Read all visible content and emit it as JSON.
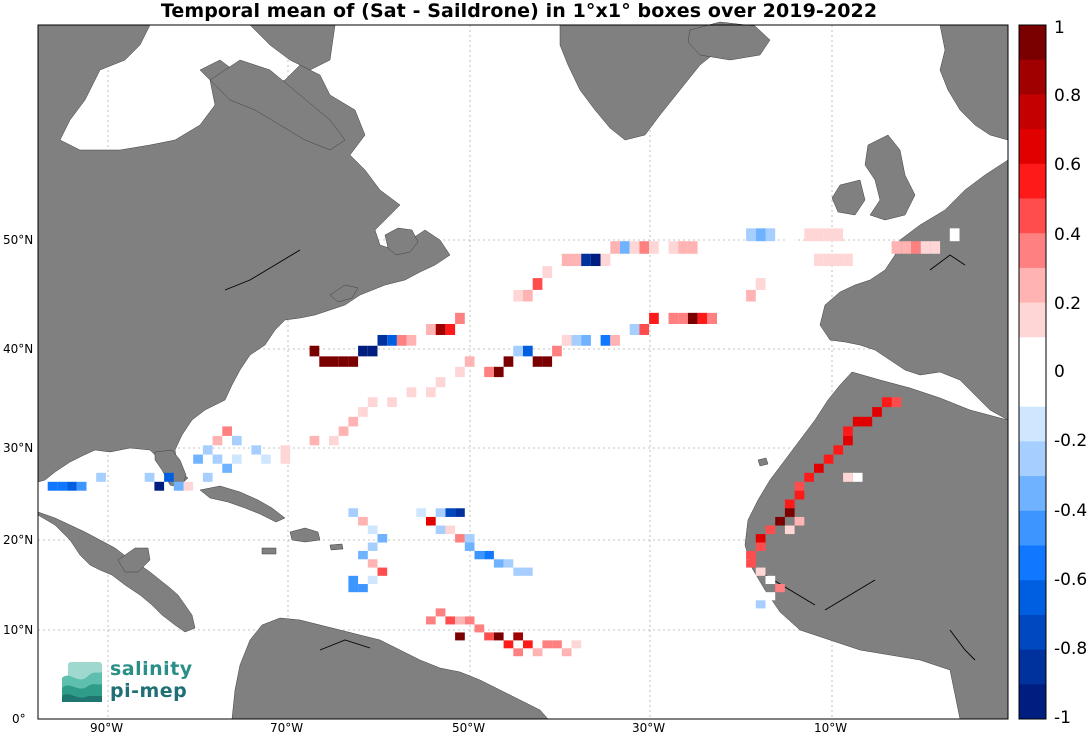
{
  "title": "Temporal mean of (Sat - Saildrone) in 1°x1° boxes over 2019-2022",
  "map": {
    "lon_range": [
      -98,
      2
    ],
    "lat_range": [
      0,
      66
    ],
    "land_color": "#808080",
    "ocean_color": "#ffffff",
    "grid": "dotted"
  },
  "lat_labels": [
    "0°",
    "10°N",
    "20°N",
    "30°N",
    "40°N",
    "50°N"
  ],
  "lon_labels": [
    "90°W",
    "70°W",
    "50°W",
    "30°W",
    "10°W"
  ],
  "colorbar": {
    "min": -1,
    "max": 1,
    "tick_labels": [
      "1",
      "0.8",
      "0.6",
      "0.4",
      "0.2",
      "0",
      "-0.2",
      "-0.4",
      "-0.6",
      "-0.8",
      "-1"
    ],
    "colors_top_to_bottom": [
      "#7a0000",
      "#a00000",
      "#c40000",
      "#e10000",
      "#ff1a1a",
      "#ff4d4d",
      "#ff8080",
      "#ffb3b3",
      "#ffd6d6",
      "#ffffff",
      "#ffffff",
      "#cfe6ff",
      "#a6cfff",
      "#6fb2ff",
      "#3d95ff",
      "#0f78ff",
      "#005fe0",
      "#0048c0",
      "#00329e",
      "#001e80"
    ]
  },
  "logo": {
    "line1": "salinity",
    "line2": "pi-mep"
  },
  "cells": [
    [
      -97,
      28,
      -0.5
    ],
    [
      -96,
      28,
      -0.5
    ],
    [
      -95,
      28,
      -0.6
    ],
    [
      -94,
      28,
      -0.4
    ],
    [
      -92,
      29,
      -0.2
    ],
    [
      -87,
      29,
      -0.2
    ],
    [
      -86,
      28,
      -0.9
    ],
    [
      -85,
      29,
      -0.6
    ],
    [
      -84,
      28,
      -0.3
    ],
    [
      -80,
      33,
      0.3
    ],
    [
      -79,
      34,
      0.4
    ],
    [
      -78,
      33,
      -0.2
    ],
    [
      -81,
      32,
      -0.2
    ],
    [
      -82,
      31,
      -0.3
    ],
    [
      -80,
      31,
      -0.2
    ],
    [
      -78,
      31,
      -0.1
    ],
    [
      -76,
      32,
      -0.2
    ],
    [
      -75,
      31,
      -0.1
    ],
    [
      -73,
      31,
      0.2
    ],
    [
      -79,
      30,
      -0.3
    ],
    [
      -81,
      29,
      -0.2
    ],
    [
      -83,
      28,
      0.2
    ],
    [
      -73,
      32,
      0.2
    ],
    [
      -70,
      33,
      0.3
    ],
    [
      -68,
      33,
      0.2
    ],
    [
      -67,
      34,
      0.3
    ],
    [
      -66,
      35,
      0.3
    ],
    [
      -65,
      36,
      0.2
    ],
    [
      -64,
      37,
      0.2
    ],
    [
      -62,
      37,
      0.2
    ],
    [
      -60,
      38,
      0.2
    ],
    [
      -58,
      38,
      0.2
    ],
    [
      -57,
      39,
      0.2
    ],
    [
      -55,
      40,
      0.2
    ],
    [
      -54,
      41,
      0.3
    ],
    [
      -52,
      40,
      0.4
    ],
    [
      -70,
      42,
      0.9
    ],
    [
      -69,
      41,
      0.9
    ],
    [
      -68,
      41,
      0.9
    ],
    [
      -67,
      41,
      0.9
    ],
    [
      -66,
      41,
      0.9
    ],
    [
      -65,
      42,
      -0.9
    ],
    [
      -64,
      42,
      -0.9
    ],
    [
      -63,
      43,
      -0.8
    ],
    [
      -62,
      43,
      -0.6
    ],
    [
      -61,
      43,
      0.4
    ],
    [
      -60,
      43,
      0.3
    ],
    [
      -58,
      44,
      0.3
    ],
    [
      -57,
      44,
      0.8
    ],
    [
      -56,
      44,
      0.6
    ],
    [
      -55,
      45,
      0.4
    ],
    [
      -51,
      40,
      0.95
    ],
    [
      -50,
      41,
      0.95
    ],
    [
      -49,
      42,
      -0.2
    ],
    [
      -48,
      42,
      -0.6
    ],
    [
      -47,
      41,
      0.9
    ],
    [
      -46,
      41,
      0.9
    ],
    [
      -45,
      42,
      0.4
    ],
    [
      -44,
      43,
      0.2
    ],
    [
      -43,
      43,
      -0.2
    ],
    [
      -42,
      43,
      -0.3
    ],
    [
      -40,
      43,
      -0.5
    ],
    [
      -39,
      43,
      0.3
    ],
    [
      -37,
      44,
      -0.2
    ],
    [
      -36,
      44,
      0.5
    ],
    [
      -35,
      45,
      0.6
    ],
    [
      -33,
      45,
      0.4
    ],
    [
      -32,
      45,
      0.4
    ],
    [
      -31,
      45,
      0.95
    ],
    [
      -30,
      45,
      0.6
    ],
    [
      -29,
      45,
      0.4
    ],
    [
      -25,
      47,
      0.3
    ],
    [
      -24,
      48,
      0.2
    ],
    [
      -49,
      47,
      0.2
    ],
    [
      -48,
      47,
      0.3
    ],
    [
      -47,
      48,
      0.5
    ],
    [
      -46,
      49,
      0.2
    ],
    [
      -44,
      50,
      0.3
    ],
    [
      -43,
      50,
      0.3
    ],
    [
      -42,
      50,
      -0.8
    ],
    [
      -41,
      50,
      -0.9
    ],
    [
      -40,
      50,
      0.2
    ],
    [
      -39,
      51,
      0.3
    ],
    [
      -38,
      51,
      -0.3
    ],
    [
      -37,
      51,
      0.2
    ],
    [
      -36,
      51,
      0.4
    ],
    [
      -35,
      51,
      0.2
    ],
    [
      -33,
      51,
      0.2
    ],
    [
      -32,
      51,
      0.3
    ],
    [
      -31,
      51,
      0.3
    ],
    [
      -25,
      52,
      -0.2
    ],
    [
      -24,
      52,
      -0.3
    ],
    [
      -23,
      52,
      -0.2
    ],
    [
      -21,
      52,
      0.1
    ],
    [
      -19,
      52,
      0.2
    ],
    [
      -18,
      52,
      0.2
    ],
    [
      -17,
      52,
      0.2
    ],
    [
      -16,
      52,
      0.2
    ],
    [
      -18,
      50,
      0.2
    ],
    [
      -17,
      50,
      0.2
    ],
    [
      -16,
      50,
      0.2
    ],
    [
      -15,
      50,
      0.2
    ],
    [
      -10,
      51,
      0.3
    ],
    [
      -9,
      51,
      0.3
    ],
    [
      -8,
      51,
      0.4
    ],
    [
      -7,
      51,
      0.2
    ],
    [
      -6,
      51,
      0.2
    ],
    [
      -4,
      52,
      0.1
    ],
    [
      -66,
      25,
      -0.2
    ],
    [
      -65,
      24,
      0.3
    ],
    [
      -64,
      23,
      -0.1
    ],
    [
      -63,
      22,
      -0.3
    ],
    [
      -64,
      21,
      -0.2
    ],
    [
      -65,
      20,
      -0.3
    ],
    [
      -64,
      19,
      0.3
    ],
    [
      -63,
      18,
      0.5
    ],
    [
      -64,
      17,
      -0.1
    ],
    [
      -65,
      16,
      -0.4
    ],
    [
      -66,
      16,
      -0.4
    ],
    [
      -66,
      17,
      -0.4
    ],
    [
      -59,
      25,
      -0.1
    ],
    [
      -58,
      24,
      0.7
    ],
    [
      -57,
      23,
      -0.2
    ],
    [
      -56,
      23,
      0.2
    ],
    [
      -55,
      22,
      0.4
    ],
    [
      -54,
      22,
      -0.2
    ],
    [
      -56,
      25,
      -0.7
    ],
    [
      -55,
      25,
      -0.8
    ],
    [
      -57,
      25,
      -0.2
    ],
    [
      -54,
      21,
      -0.3
    ],
    [
      -53,
      20,
      -0.4
    ],
    [
      -52,
      20,
      -0.5
    ],
    [
      -51,
      19,
      -0.3
    ],
    [
      -50,
      19,
      -0.2
    ],
    [
      -49,
      18,
      -0.2
    ],
    [
      -48,
      18,
      -0.2
    ],
    [
      -57,
      13,
      0.4
    ],
    [
      -56,
      12,
      0.5
    ],
    [
      -55,
      12,
      0.3
    ],
    [
      -54,
      12,
      0.4
    ],
    [
      -53,
      11,
      0.4
    ],
    [
      -52,
      10,
      0.5
    ],
    [
      -51,
      10,
      0.95
    ],
    [
      -50,
      9,
      0.6
    ],
    [
      -49,
      8,
      0.4
    ],
    [
      -48,
      9,
      0.6
    ],
    [
      -47,
      8,
      0.3
    ],
    [
      -46,
      9,
      0.4
    ],
    [
      -45,
      9,
      0.4
    ],
    [
      -44,
      8,
      0.3
    ],
    [
      -43,
      9,
      0.2
    ],
    [
      -58,
      12,
      0.4
    ],
    [
      -55,
      10,
      0.9
    ],
    [
      -49,
      10,
      0.8
    ],
    [
      -10,
      37,
      0.5
    ],
    [
      -11,
      37,
      0.6
    ],
    [
      -12,
      36,
      0.7
    ],
    [
      -13,
      35,
      0.7
    ],
    [
      -14,
      35,
      0.7
    ],
    [
      -15,
      34,
      0.6
    ],
    [
      -15,
      33,
      0.7
    ],
    [
      -16,
      32,
      0.6
    ],
    [
      -17,
      31,
      0.6
    ],
    [
      -18,
      30,
      0.7
    ],
    [
      -19,
      29,
      0.6
    ],
    [
      -20,
      28,
      0.5
    ],
    [
      -20,
      27,
      0.6
    ],
    [
      -21,
      26,
      0.6
    ],
    [
      -21,
      25,
      0.95
    ],
    [
      -22,
      24,
      0.9
    ],
    [
      -23,
      23,
      0.5
    ],
    [
      -24,
      22,
      0.7
    ],
    [
      -24,
      21,
      0.5
    ],
    [
      -25,
      20,
      0.5
    ],
    [
      -25,
      19,
      0.5
    ],
    [
      -24,
      18,
      0.2
    ],
    [
      -23,
      17,
      0.1
    ],
    [
      -22,
      16,
      0.4
    ],
    [
      -23,
      15,
      0.1
    ],
    [
      -24,
      14,
      -0.2
    ],
    [
      -21,
      23,
      0.2
    ],
    [
      -20,
      24,
      0.3
    ],
    [
      -15,
      29,
      0.2
    ],
    [
      -14,
      29,
      0.1
    ]
  ]
}
